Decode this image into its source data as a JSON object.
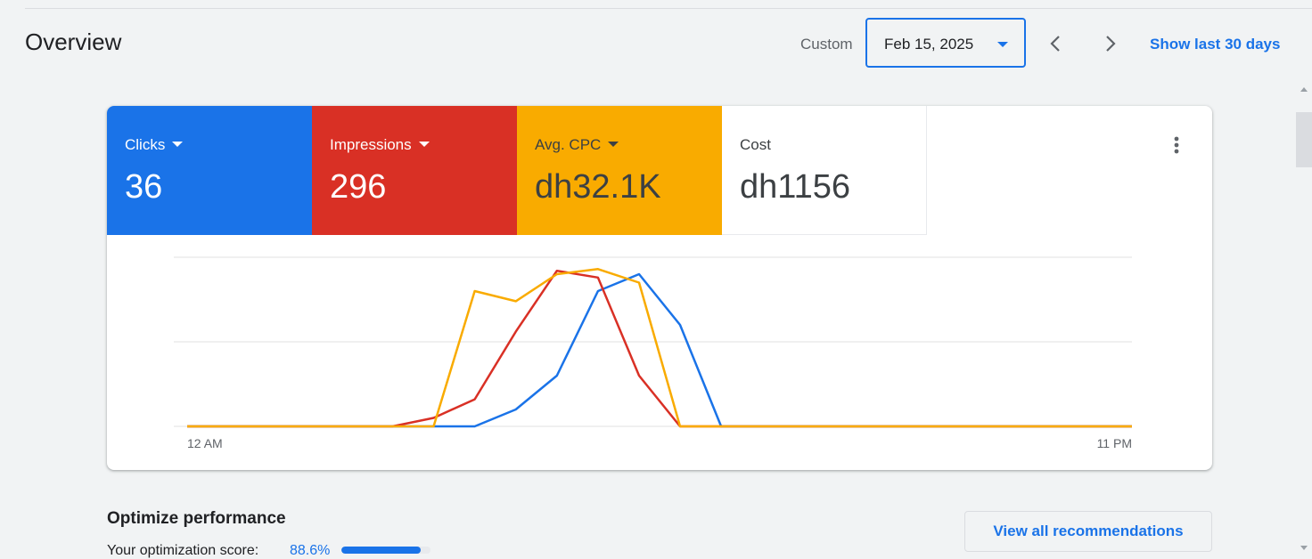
{
  "header": {
    "title": "Overview",
    "custom_label": "Custom",
    "date_value": "Feb 15, 2025",
    "show_last_label": "Show last 30 days"
  },
  "metrics": [
    {
      "label": "Clicks",
      "value": "36",
      "color": "#1a73e8",
      "has_dropdown": true
    },
    {
      "label": "Impressions",
      "value": "296",
      "color": "#d93025",
      "has_dropdown": true
    },
    {
      "label": "Avg. CPC",
      "value": "dh32.1K",
      "color": "#f9ab00",
      "has_dropdown": true
    },
    {
      "label": "Cost",
      "value": "dh1156",
      "color": "#ffffff",
      "has_dropdown": false
    }
  ],
  "icons": {
    "date_caret": "caret-down-icon",
    "prev": "chevron-left-icon",
    "next": "chevron-right-icon",
    "more": "more-vert-icon"
  },
  "chart_data": {
    "type": "line",
    "x_start_label": "12 AM",
    "x_end_label": "11 PM",
    "x": [
      0,
      1,
      2,
      3,
      4,
      5,
      6,
      7,
      8,
      9,
      10,
      11,
      12,
      13,
      14,
      15,
      16,
      17,
      18,
      19,
      20,
      21,
      22,
      23
    ],
    "grid": true,
    "ylim": [
      0,
      1
    ],
    "series": [
      {
        "color": "#1a73e8",
        "values": [
          0,
          0,
          0,
          0,
          0,
          0,
          0,
          0,
          0.1,
          0.3,
          0.8,
          0.9,
          0.6,
          0,
          0,
          0,
          0,
          0,
          0,
          0,
          0,
          0,
          0,
          0
        ]
      },
      {
        "color": "#d93025",
        "values": [
          0,
          0,
          0,
          0,
          0,
          0,
          0.05,
          0.16,
          0.56,
          0.92,
          0.88,
          0.3,
          0,
          0,
          0,
          0,
          0,
          0,
          0,
          0,
          0,
          0,
          0,
          0
        ]
      },
      {
        "color": "#f9ab00",
        "values": [
          0,
          0,
          0,
          0,
          0,
          0,
          0,
          0.8,
          0.74,
          0.9,
          0.93,
          0.85,
          0,
          0,
          0,
          0,
          0,
          0,
          0,
          0,
          0,
          0,
          0,
          0
        ]
      }
    ]
  },
  "optimize": {
    "title": "Optimize performance",
    "score_label": "Your optimization score:",
    "score_value": "88.6%",
    "score": 0.886,
    "view_all_label": "View all recommendations"
  }
}
